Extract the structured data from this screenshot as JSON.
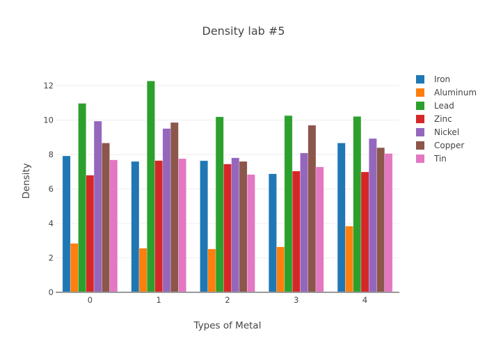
{
  "chart_data": {
    "type": "bar",
    "title": "Density lab #5",
    "xlabel": "Types of Metal",
    "ylabel": "Density",
    "categories": [
      "0",
      "1",
      "2",
      "3",
      "4"
    ],
    "ylim": [
      0,
      12.93
    ],
    "yticks": [
      0,
      2,
      4,
      6,
      8,
      10,
      12
    ],
    "grid": true,
    "legend_position": "right",
    "series": [
      {
        "name": "Iron",
        "color": "#1f77b4",
        "values": [
          7.92,
          7.6,
          7.64,
          6.88,
          8.67
        ]
      },
      {
        "name": "Aluminum",
        "color": "#ff7f0e",
        "values": [
          2.84,
          2.56,
          2.52,
          2.64,
          3.84
        ]
      },
      {
        "name": "Lead",
        "color": "#2ca02c",
        "values": [
          10.97,
          12.27,
          10.19,
          10.26,
          10.21
        ]
      },
      {
        "name": "Zinc",
        "color": "#d62728",
        "values": [
          6.8,
          7.65,
          7.45,
          7.04,
          6.99
        ]
      },
      {
        "name": "Nickel",
        "color": "#9467bd",
        "values": [
          9.94,
          9.51,
          7.81,
          8.09,
          8.93
        ]
      },
      {
        "name": "Copper",
        "color": "#8c564b",
        "values": [
          8.67,
          9.86,
          7.6,
          9.7,
          8.4
        ]
      },
      {
        "name": "Tin",
        "color": "#e377c2",
        "values": [
          7.69,
          7.76,
          6.84,
          7.28,
          8.06
        ]
      }
    ]
  }
}
